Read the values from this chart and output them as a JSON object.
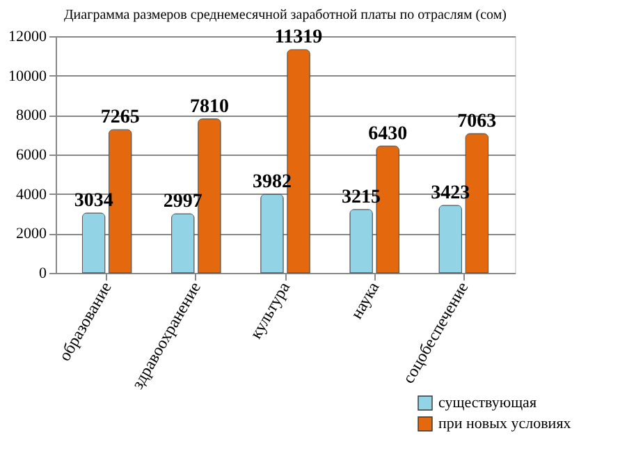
{
  "chart_data": {
    "type": "bar",
    "title": "Диаграмма размеров среднемесячной заработной платы по отраслям (сом)",
    "categories": [
      "образование",
      "здравоохранение",
      "культура",
      "наука",
      "соцобеспечение"
    ],
    "series": [
      {
        "name": "существующая",
        "color": "#92d4e6",
        "values": [
          3034,
          2997,
          3982,
          3215,
          3423
        ]
      },
      {
        "name": "при новых условиях",
        "color": "#e4680e",
        "values": [
          7265,
          7810,
          11319,
          6430,
          7063
        ]
      }
    ],
    "ylim": [
      0,
      12000
    ],
    "yticks": [
      0,
      2000,
      4000,
      6000,
      8000,
      10000,
      12000
    ],
    "grid": "y",
    "legend": "bottom right",
    "data_labels": true
  }
}
